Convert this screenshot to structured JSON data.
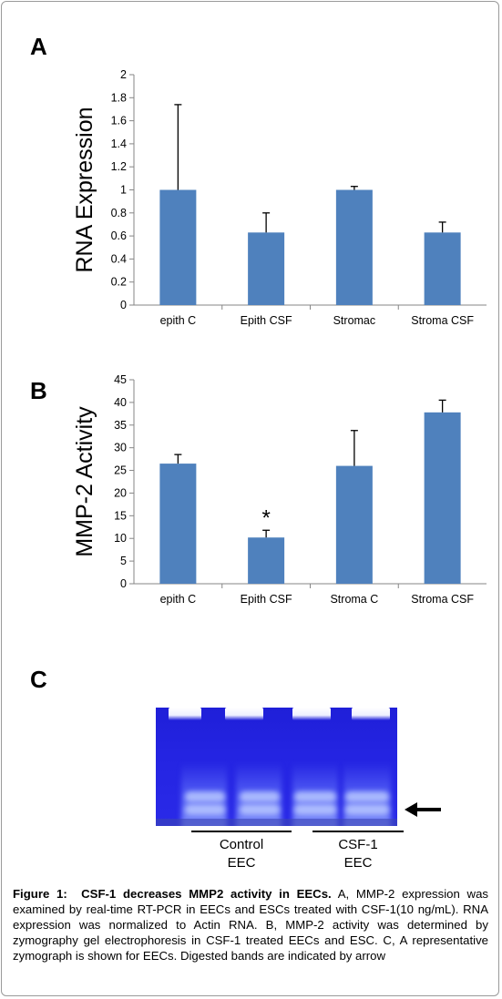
{
  "figure": {
    "panel_letters": {
      "a": "A",
      "b": "B",
      "c": "C"
    },
    "caption": {
      "label": "Figure 1:",
      "title": "CSF-1 decreases MMP2 activity in EECs.",
      "text": "A, MMP-2 expression was examined by real-time RT-PCR in EECs and ESCs treated with CSF-1(10 ng/mL). RNA expression was normalized to Actin RNA. B, MMP-2 activity was determined by zymography gel electrophoresis in CSF-1 treated EECs and ESC. C, A representative zymograph is shown for EECs. Digested bands are indicated by arrow"
    },
    "zymograph": {
      "groups": [
        {
          "line1": "Control",
          "line2": "EEC"
        },
        {
          "line1": "CSF-1",
          "line2": "EEC"
        }
      ],
      "arrow_icon": "left-arrow-icon",
      "gel_color": "#2424e2"
    }
  },
  "chart_data": [
    {
      "type": "bar",
      "title": "",
      "xlabel": "",
      "ylabel": "RNA Expression",
      "categories": [
        "epith C",
        "Epith CSF",
        "Stromac",
        "Stroma CSF"
      ],
      "values": [
        1.0,
        0.63,
        1.0,
        0.63
      ],
      "error_upper": [
        1.74,
        0.8,
        1.03,
        0.72
      ],
      "ylim": [
        0,
        2
      ],
      "yticks": [
        "0",
        "0.2",
        "0.4",
        "0.6",
        "0.8",
        "1",
        "1.2",
        "1.4",
        "1.6",
        "1.8",
        "2"
      ],
      "grid": false,
      "bar_color": "#4f81bd",
      "annotations": []
    },
    {
      "type": "bar",
      "title": "",
      "xlabel": "",
      "ylabel": "MMP-2 Activity",
      "categories": [
        "epith C",
        "Epith CSF",
        "Stroma C",
        "Stroma CSF"
      ],
      "values": [
        26.5,
        10.2,
        26.0,
        37.8
      ],
      "error_upper": [
        28.5,
        11.8,
        33.8,
        40.5
      ],
      "ylim": [
        0,
        45
      ],
      "yticks": [
        "0",
        "5",
        "10",
        "15",
        "20",
        "25",
        "30",
        "35",
        "40",
        "45"
      ],
      "grid": false,
      "bar_color": "#4f81bd",
      "annotations": [
        {
          "category": "Epith CSF",
          "text": "*"
        }
      ]
    }
  ]
}
